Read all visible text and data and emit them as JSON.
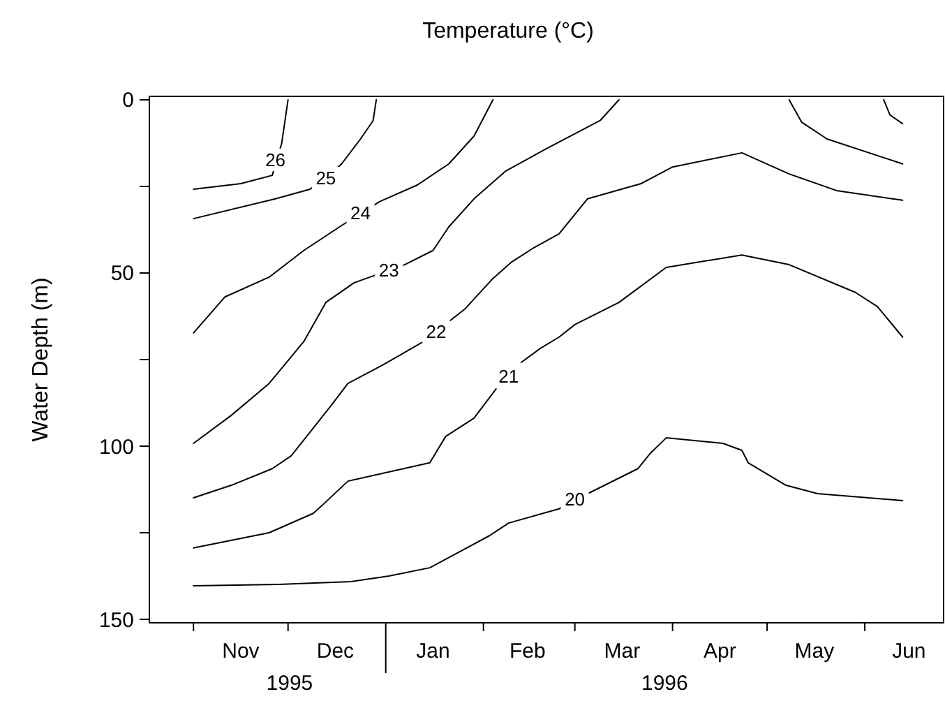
{
  "chart_data": {
    "type": "line",
    "title": "Temperature (°C)",
    "ylabel": "Water Depth (m)",
    "xlim": [
      "1995-10-18",
      "1996-06-26"
    ],
    "ylim": [
      151,
      -1
    ],
    "xticks": [
      {
        "value": "1995-11-01",
        "label": null
      },
      {
        "value": "1995-12-01",
        "label": null
      },
      {
        "value": "1996-01-01",
        "label": null
      },
      {
        "value": "1996-02-01",
        "label": null
      },
      {
        "value": "1996-03-01",
        "label": null
      },
      {
        "value": "1996-04-01",
        "label": null
      },
      {
        "value": "1996-05-01",
        "label": null
      },
      {
        "value": "1996-06-01",
        "label": null
      },
      {
        "value": "1995-11-16",
        "label": "Nov"
      },
      {
        "value": "1995-12-16",
        "label": "Dec"
      },
      {
        "value": "1996-01-16",
        "label": "Jan"
      },
      {
        "value": "1996-02-15",
        "label": "Feb"
      },
      {
        "value": "1996-03-16",
        "label": "Mar"
      },
      {
        "value": "1996-04-16",
        "label": "Apr"
      },
      {
        "value": "1996-05-16",
        "label": "May"
      },
      {
        "value": "1996-06-15",
        "label": "Jun"
      }
    ],
    "yticks": [
      0,
      {
        "value": 25,
        "label": null
      },
      50,
      {
        "value": 75,
        "label": null
      },
      100,
      {
        "value": 125,
        "label": null
      },
      150
    ],
    "series": [
      {
        "color": "#000000",
        "x": [
          "1995-11-01",
          "1995-11-16",
          "1995-11-26",
          "1995-11-29",
          "1995-12-01"
        ],
        "values": [
          25.8,
          24.2,
          21.8,
          12.5,
          0
        ]
      },
      {
        "color": "#000000",
        "x": [
          "1995-11-01",
          "1995-11-27",
          "1995-12-08",
          "1995-12-13",
          "1995-12-18",
          "1995-12-24",
          "1995-12-28",
          "1995-12-29"
        ],
        "values": [
          34.3,
          28.6,
          25.8,
          22.6,
          18.5,
          11.3,
          6,
          0
        ]
      },
      {
        "color": "#000000",
        "x": [
          "1995-11-01",
          "1995-11-11",
          "1995-11-25",
          "1995-12-06",
          "1995-12-18",
          "1995-12-30",
          "1996-01-11",
          "1996-01-21",
          "1996-01-29",
          "1996-02-04"
        ],
        "values": [
          67.3,
          56.9,
          51.2,
          43.5,
          36.3,
          29.4,
          24.6,
          18.5,
          10.5,
          0
        ]
      },
      {
        "color": "#000000",
        "x": [
          "1995-11-01",
          "1995-11-13",
          "1995-11-25",
          "1995-12-06",
          "1995-12-13",
          "1995-12-22",
          "1996-01-07",
          "1996-01-16",
          "1996-01-21",
          "1996-01-29",
          "1996-02-08",
          "1996-02-21",
          "1996-03-09",
          "1996-03-15"
        ],
        "values": [
          99.2,
          91.1,
          81.9,
          69.8,
          58.5,
          52.8,
          47.6,
          43.5,
          36.7,
          28.6,
          20.6,
          14.1,
          6,
          0
        ]
      },
      {
        "color": "#000000",
        "x": [
          "1995-11-01",
          "1995-11-13",
          "1995-11-26",
          "1995-12-02",
          "1995-12-09",
          "1995-12-15",
          "1995-12-20",
          "1995-12-31",
          "1996-01-13",
          "1996-01-17",
          "1996-01-26",
          "1996-02-04",
          "1996-02-10",
          "1996-02-17",
          "1996-02-25",
          "1996-03-05",
          "1996-03-22",
          "1996-04-01",
          "1996-04-23",
          "1996-05-08",
          "1996-05-23",
          "1996-06-13"
        ],
        "values": [
          114.9,
          111.3,
          106.5,
          102.8,
          94.8,
          87.9,
          81.9,
          76.6,
          69.8,
          66.9,
          60.5,
          51.6,
          46.8,
          42.7,
          38.7,
          28.6,
          24.2,
          19.4,
          15.3,
          21.4,
          26.2,
          29
        ]
      },
      {
        "color": "#000000",
        "x": [
          "1995-11-01",
          "1995-11-25",
          "1995-12-09",
          "1995-12-13",
          "1995-12-20",
          "1996-01-15",
          "1996-01-20",
          "1996-01-29",
          "1996-02-05",
          "1996-02-09",
          "1996-02-13",
          "1996-02-19",
          "1996-02-25",
          "1996-03-01",
          "1996-03-15",
          "1996-03-30",
          "1996-04-23",
          "1996-05-08",
          "1996-05-29",
          "1996-06-05",
          "1996-06-13"
        ],
        "values": [
          129.4,
          125,
          119.4,
          116.1,
          110.1,
          104.8,
          97.2,
          91.9,
          83.5,
          null,
          75.8,
          71.8,
          68.5,
          64.9,
          58.5,
          48.4,
          44.8,
          47.6,
          55.6,
          59.7,
          68.5
        ]
      },
      {
        "color": "#000000",
        "x": [
          "1995-11-01",
          "1995-11-28",
          "1995-12-21",
          "1996-01-02",
          "1996-01-15",
          "1996-01-25",
          "1996-02-03",
          "1996-02-09",
          "1996-02-25",
          "1996-03-06",
          "1996-03-21",
          "1996-03-25",
          "1996-03-30",
          "1996-04-17",
          "1996-04-23",
          "1996-04-25",
          "1996-05-07",
          "1996-05-17",
          "1996-06-13"
        ],
        "values": [
          140.3,
          139.9,
          139.1,
          137.5,
          135.1,
          130.2,
          125.8,
          122.2,
          118.1,
          113.3,
          106.5,
          102,
          97.6,
          99.2,
          101.2,
          104.8,
          111.3,
          113.7,
          115.7
        ]
      },
      {
        "color": "#000000",
        "x": [
          "1996-05-08",
          "1996-05-12",
          "1996-05-20",
          "1996-06-13"
        ],
        "values": [
          0,
          6.5,
          11.3,
          18.5
        ]
      },
      {
        "color": "#000000",
        "x": [
          "1996-06-07",
          "1996-06-09",
          "1996-06-13"
        ],
        "values": [
          0,
          4.4,
          6.9
        ]
      }
    ],
    "annotations": [
      {
        "text": "26",
        "x": "1995-11-27",
        "y": 17.3
      },
      {
        "text": "25",
        "x": "1995-12-13",
        "y": 22.6
      },
      {
        "text": "24",
        "x": "1995-12-24",
        "y": 32.7
      },
      {
        "text": "23",
        "x": "1996-01-02",
        "y": 49.2
      },
      {
        "text": "22",
        "x": "1996-01-17",
        "y": 66.9
      },
      {
        "text": "21",
        "x": "1996-02-09",
        "y": 79.8
      },
      {
        "text": "20",
        "x": "1996-03-01",
        "y": 115.3
      },
      "1995",
      "1996"
    ]
  }
}
